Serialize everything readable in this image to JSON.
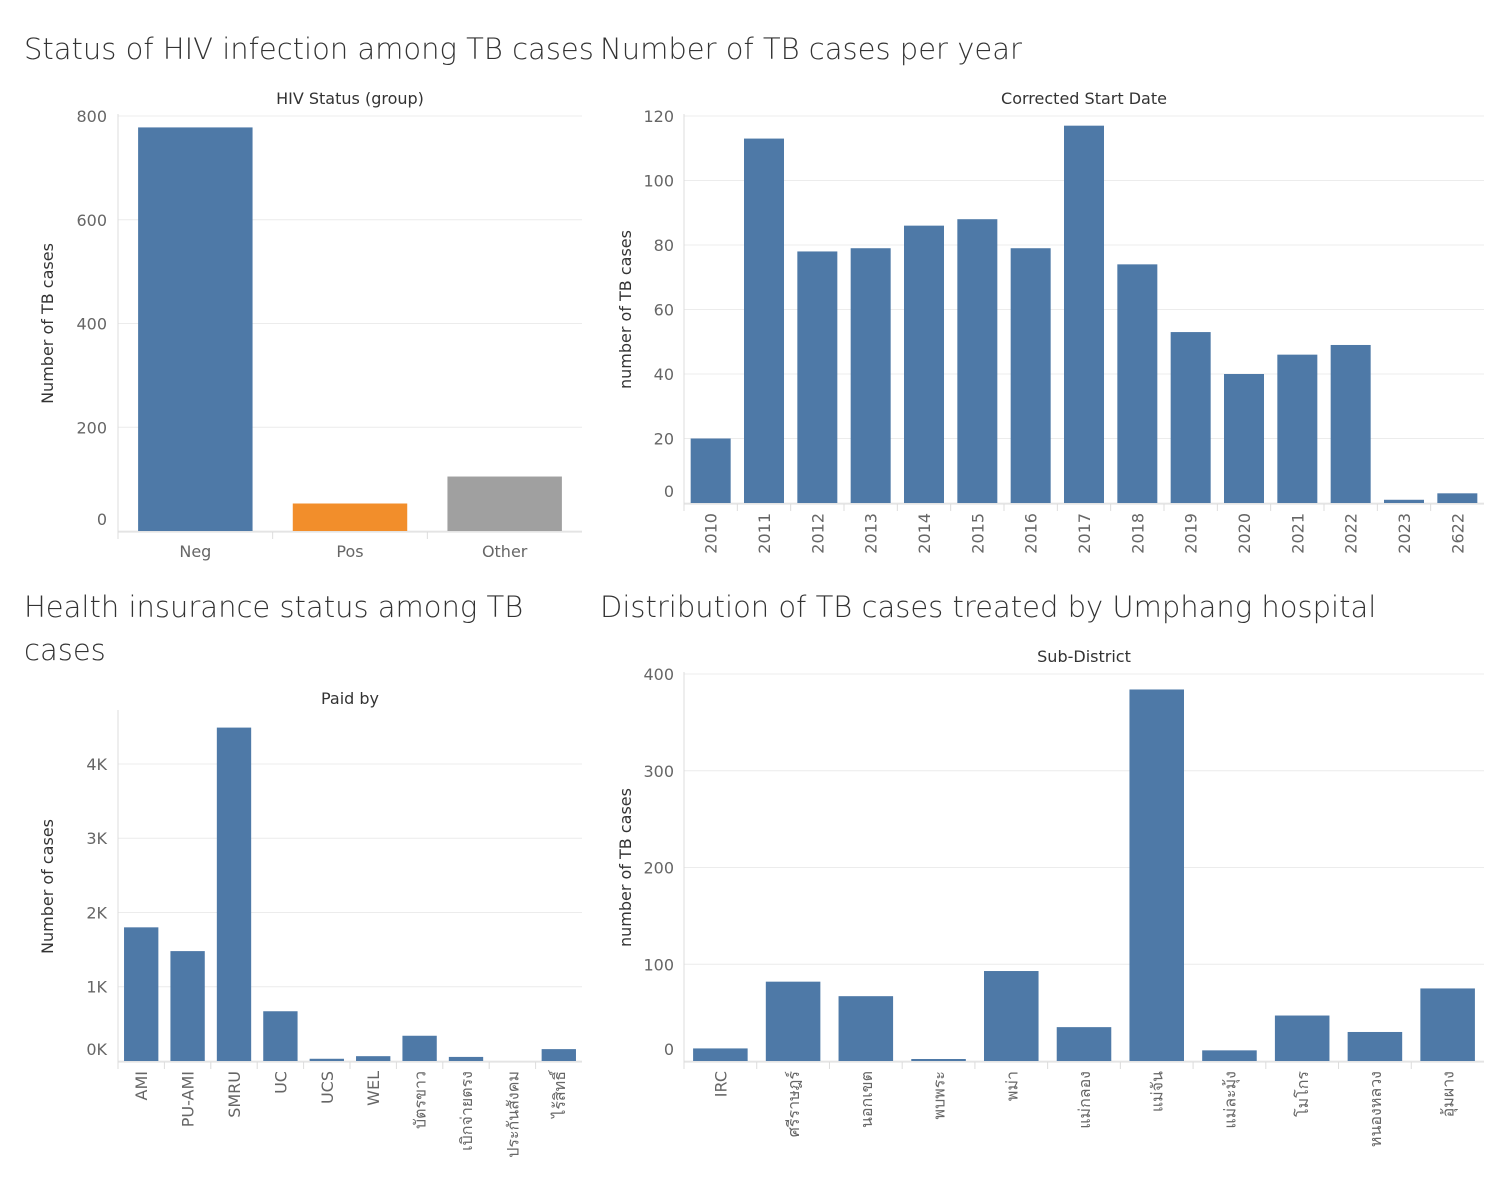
{
  "chart_data": [
    {
      "id": "hiv",
      "type": "bar",
      "title": "Status of HIV infection among TB cases",
      "header": "HIV Status (group)",
      "ylabel": "Number of TB cases",
      "xlabel": "",
      "categories": [
        "Neg",
        "Pos",
        "Other"
      ],
      "values": [
        778,
        53,
        105
      ],
      "colors": [
        "#4e79a7",
        "#f28e2b",
        "#a0a0a0"
      ],
      "ylim": [
        0,
        800
      ],
      "yticks": [
        0,
        200,
        400,
        600,
        800
      ],
      "ytick_labels": [
        "0",
        "200",
        "400",
        "600",
        "800"
      ],
      "xtick_rotation": 0,
      "grid": true
    },
    {
      "id": "peryear",
      "type": "bar",
      "title": "Number of TB cases per year",
      "header": "Corrected Start Date",
      "ylabel": "number of TB cases",
      "xlabel": "",
      "categories": [
        "2010",
        "2011",
        "2012",
        "2013",
        "2014",
        "2015",
        "2016",
        "2017",
        "2018",
        "2019",
        "2020",
        "2021",
        "2022",
        "2023",
        "2622"
      ],
      "values": [
        20,
        113,
        78,
        79,
        86,
        88,
        79,
        117,
        74,
        53,
        40,
        46,
        49,
        1,
        3
      ],
      "colors": [
        "#4e79a7"
      ],
      "ylim": [
        0,
        120
      ],
      "yticks": [
        0,
        20,
        40,
        60,
        80,
        100,
        120
      ],
      "ytick_labels": [
        "0",
        "20",
        "40",
        "60",
        "80",
        "100",
        "120"
      ],
      "xtick_rotation": -90,
      "grid": true
    },
    {
      "id": "insurance",
      "type": "bar",
      "title": "Health insurance status among TB cases",
      "header": "Paid by",
      "ylabel": "Number of cases",
      "xlabel": "",
      "categories": [
        "AMI",
        "PU-AMI",
        "SMRU",
        "UC",
        "UCS",
        "WEL",
        "บัตรขาว",
        "เบิกจ่ายตรง",
        "ประกันสังคม",
        "ไร้สิทธิ์"
      ],
      "values": [
        1800,
        1480,
        4490,
        670,
        30,
        65,
        340,
        55,
        0,
        160
      ],
      "colors": [
        "#4e79a7"
      ],
      "ylim": [
        0,
        4700
      ],
      "yticks": [
        0,
        1000,
        2000,
        3000,
        4000
      ],
      "ytick_labels": [
        "0K",
        "1K",
        "2K",
        "3K",
        "4K"
      ],
      "xtick_rotation": -90,
      "grid": true
    },
    {
      "id": "subdistrict",
      "type": "bar",
      "title": "Distribution of TB cases treated by Umphang hospital",
      "header": "Sub-District",
      "ylabel": "number of TB cases",
      "xlabel": "",
      "categories": [
        "IRC",
        "ศรีราษฎร์",
        "นอกเขต",
        "พบพระ",
        "พม่า",
        "แม่กลอง",
        "แม่จัน",
        "แม่ละมุ้ง",
        "โมโกร",
        "หนองหลวง",
        "อุ้มผาง"
      ],
      "values": [
        13,
        82,
        67,
        1,
        93,
        35,
        384,
        11,
        47,
        30,
        75
      ],
      "colors": [
        "#4e79a7"
      ],
      "ylim": [
        0,
        400
      ],
      "yticks": [
        0,
        100,
        200,
        300,
        400
      ],
      "ytick_labels": [
        "0",
        "100",
        "200",
        "300",
        "400"
      ],
      "xtick_rotation": -90,
      "grid": true
    }
  ]
}
